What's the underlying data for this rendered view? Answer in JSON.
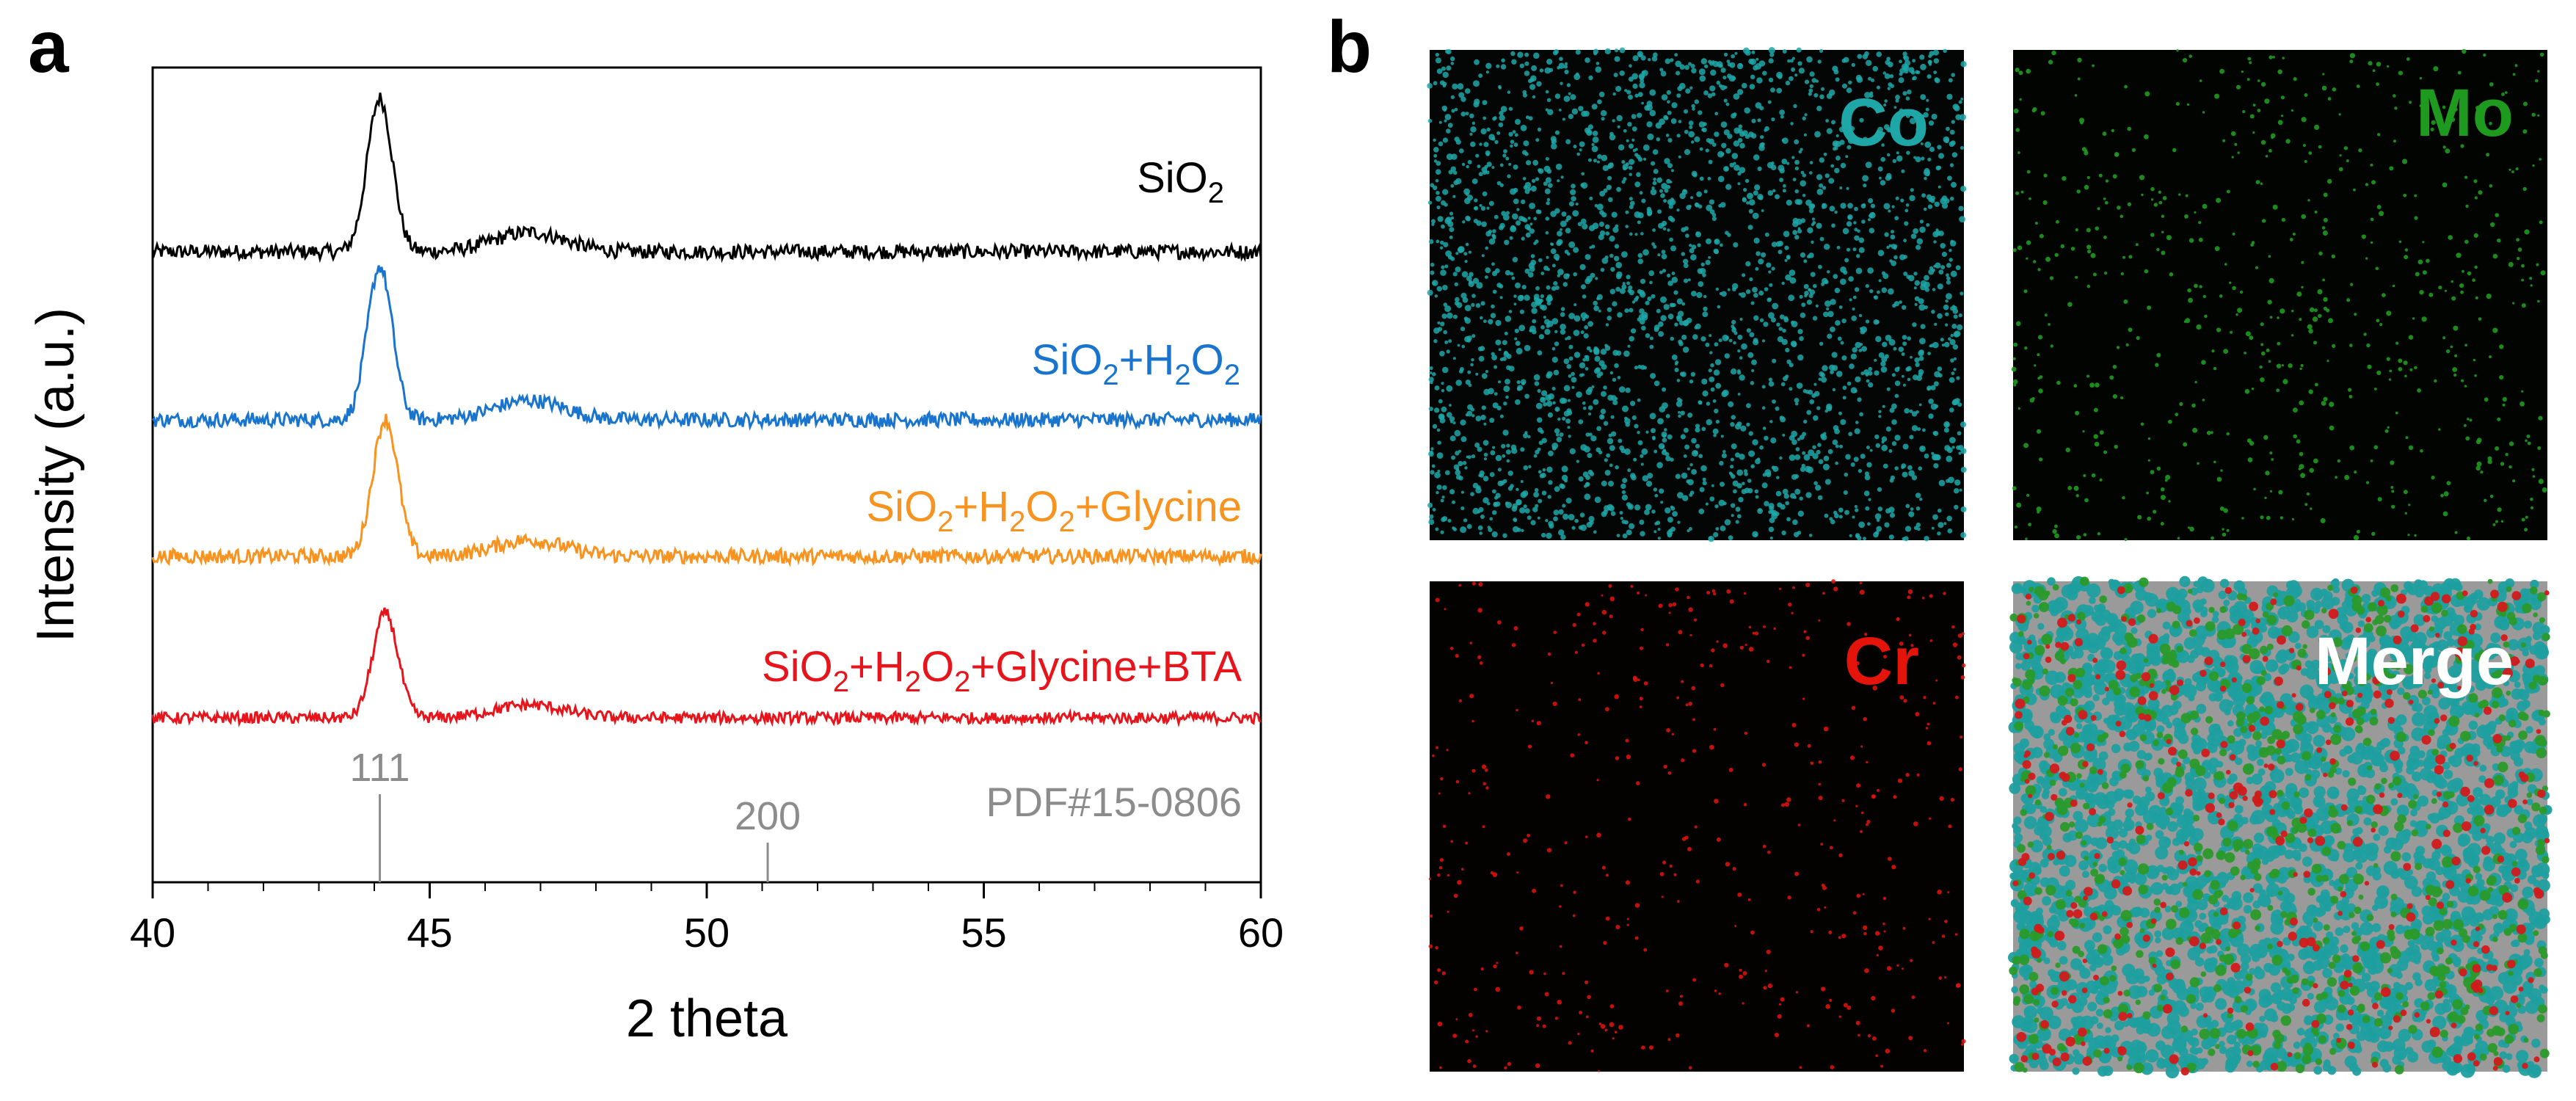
{
  "panels": {
    "a_label": "a",
    "b_label": "b"
  },
  "chart_data": {
    "type": "line",
    "title": "",
    "xlabel": "2 theta",
    "ylabel": "Intensity (a.u.)",
    "xlim": [
      40,
      60
    ],
    "xticks": [
      "40",
      "45",
      "50",
      "55",
      "60"
    ],
    "yticks": [],
    "series": [
      {
        "name": "SiO2",
        "label_base": "SiO",
        "label_sub": "2",
        "color": "#000000",
        "peaks": [
          {
            "x": 44.1,
            "height": 0.95
          },
          {
            "x": 46.8,
            "height": 0.12
          }
        ],
        "offset": 3,
        "noise": 0.09
      },
      {
        "name": "SiO2+H2O2",
        "color": "#1874cd",
        "peaks": [
          {
            "x": 44.1,
            "height": 0.95
          },
          {
            "x": 46.8,
            "height": 0.12
          }
        ],
        "offset": 2,
        "noise": 0.09
      },
      {
        "name": "SiO2+H2O2+Glycine",
        "color": "#f7931e",
        "peaks": [
          {
            "x": 44.2,
            "height": 0.85
          },
          {
            "x": 46.8,
            "height": 0.1
          }
        ],
        "offset": 1,
        "noise": 0.09
      },
      {
        "name": "SiO2+H2O2+Glycine+BTA",
        "color": "#e8141b",
        "peaks": [
          {
            "x": 44.2,
            "height": 0.65
          },
          {
            "x": 46.8,
            "height": 0.08
          }
        ],
        "offset": 0,
        "noise": 0.07
      }
    ],
    "reference": {
      "name": "PDF#15-0806",
      "color": "#8c8c8c",
      "lines": [
        {
          "x": 44.1,
          "label": "111",
          "height": 1.0
        },
        {
          "x": 51.1,
          "label": "200",
          "height": 0.45
        }
      ]
    }
  },
  "maps": {
    "co": {
      "label": "Co",
      "color": "#1fa7a7"
    },
    "mo": {
      "label": "Mo",
      "color": "#1e9a1e"
    },
    "cr": {
      "label": "Cr",
      "color": "#e5140b"
    },
    "merge": {
      "label": "Merge",
      "color": "#ffffff"
    }
  }
}
